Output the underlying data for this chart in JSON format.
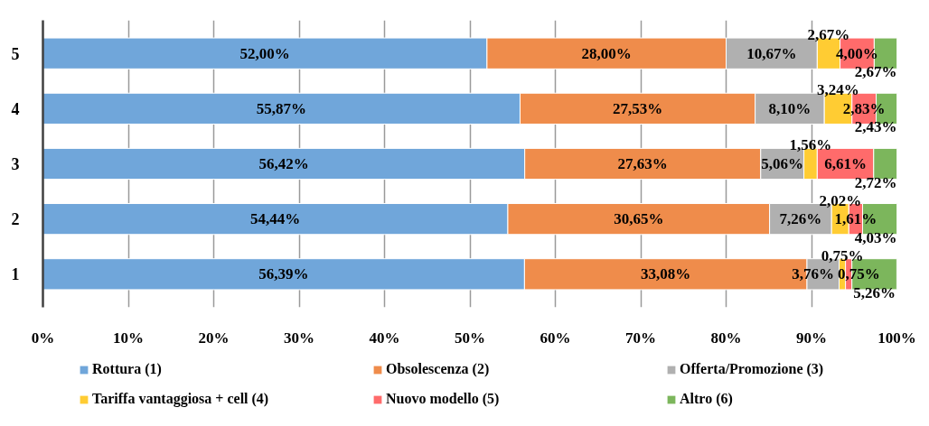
{
  "chart_data": {
    "type": "bar",
    "orientation": "horizontal",
    "stacked": true,
    "categories": [
      "5",
      "4",
      "3",
      "2",
      "1"
    ],
    "series": [
      {
        "name": "Rottura (1)",
        "color": "#70a6da",
        "values": [
          52.0,
          55.87,
          56.42,
          54.44,
          56.39
        ],
        "value_labels": [
          "52,00%",
          "55,87%",
          "56,42%",
          "54,44%",
          "56,39%"
        ]
      },
      {
        "name": "Obsolescenza (2)",
        "color": "#ef8c4b",
        "values": [
          28.0,
          27.53,
          27.63,
          30.65,
          33.08
        ],
        "value_labels": [
          "28,00%",
          "27,53%",
          "27,63%",
          "30,65%",
          "33,08%"
        ]
      },
      {
        "name": "Offerta/Promozione (3)",
        "color": "#b0b0b0",
        "values": [
          10.67,
          8.1,
          5.06,
          7.26,
          3.76
        ],
        "value_labels": [
          "10,67%",
          "8,10%",
          "5,06%",
          "7,26%",
          "3,76%"
        ]
      },
      {
        "name": "Tariffa vantaggiosa + cell (4)",
        "color": "#ffcc33",
        "values": [
          2.67,
          3.24,
          1.56,
          2.02,
          0.75
        ],
        "value_labels": [
          "2,67%",
          "3,24%",
          "1,56%",
          "2,02%",
          "0,75%"
        ]
      },
      {
        "name": "Nuovo modello (5)",
        "color": "#ff6b6b",
        "values": [
          4.0,
          2.83,
          6.61,
          1.61,
          0.75
        ],
        "value_labels": [
          "4,00%",
          "2,83%",
          "6,61%",
          "1,61%",
          "0,75%"
        ]
      },
      {
        "name": "Altro (6)",
        "color": "#7cb65c",
        "values": [
          2.67,
          2.43,
          2.72,
          4.03,
          5.26
        ],
        "value_labels": [
          "2,67%",
          "2,43%",
          "2,72%",
          "4,03%",
          "5,26%"
        ]
      }
    ],
    "xlim": [
      0,
      100
    ],
    "xticks": [
      {
        "value": 0,
        "label": "0%"
      },
      {
        "value": 10,
        "label": "10%"
      },
      {
        "value": 20,
        "label": "20%"
      },
      {
        "value": 30,
        "label": "30%"
      },
      {
        "value": 40,
        "label": "40%"
      },
      {
        "value": 50,
        "label": "50%"
      },
      {
        "value": 60,
        "label": "60%"
      },
      {
        "value": 70,
        "label": "70%"
      },
      {
        "value": 80,
        "label": "80%"
      },
      {
        "value": 90,
        "label": "90%"
      },
      {
        "value": 100,
        "label": "100%"
      }
    ],
    "grid": "x",
    "legend": "bottom"
  }
}
